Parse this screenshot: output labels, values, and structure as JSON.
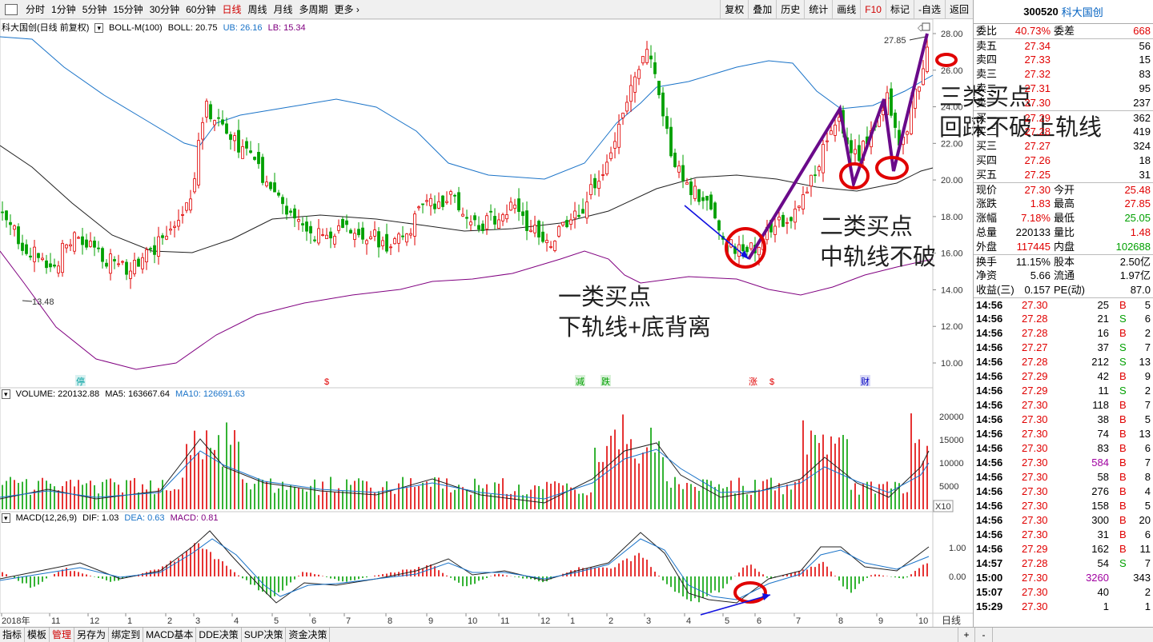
{
  "toolbar": {
    "periods": [
      "分时",
      "1分钟",
      "5分钟",
      "15分钟",
      "30分钟",
      "60分钟",
      "日线",
      "周线",
      "月线",
      "多周期",
      "更多"
    ],
    "active_period": "日线",
    "right_tools": [
      "复权",
      "叠加",
      "历史",
      "统计",
      "画线",
      "F10",
      "标记",
      "-自选",
      "返回"
    ]
  },
  "quote_header": {
    "code": "300520",
    "name": "科大国创"
  },
  "main_legend": {
    "title": "科大国创(日线 前复权)",
    "indicator": "BOLL-M(100)",
    "boll": "BOLL: 20.75",
    "ub": "UB: 26.16",
    "lb": "LB: 15.34"
  },
  "price_axis": [
    "28.00",
    "26.00",
    "24.00",
    "22.00",
    "20.00",
    "18.00",
    "16.00",
    "14.00",
    "12.00",
    "10.00"
  ],
  "high_label": "27.85",
  "low_label": "13.48",
  "event_markers": [
    "停",
    "$",
    "减",
    "跌",
    "涨",
    "$",
    "财"
  ],
  "volume_legend": {
    "title": "VOLUME: 220132.88",
    "ma5": "MA5: 163667.64",
    "ma10": "MA10: 126691.63"
  },
  "volume_axis": [
    "20000",
    "15000",
    "10000",
    "5000"
  ],
  "volume_unit": "X10",
  "macd_legend": {
    "title": "MACD(12,26,9)",
    "dif": "DIF: 1.03",
    "dea": "DEA: 0.63",
    "macd": "MACD: 0.81"
  },
  "macd_axis": [
    "1.00",
    "0.00"
  ],
  "time_axis": [
    "2018年",
    "11",
    "12",
    "1",
    "2",
    "3",
    "4",
    "5",
    "6",
    "7",
    "8",
    "9",
    "10",
    "11",
    "12",
    "1",
    "2",
    "3",
    "4",
    "5",
    "6",
    "7",
    "8",
    "9",
    "10"
  ],
  "time_axis_unit": "日线",
  "annotations": {
    "buy1_line1": "一类买点",
    "buy1_line2": "下轨线+底背离",
    "buy2_line1": "二类买点",
    "buy2_line2": "中轨线不破",
    "buy3_line1": "三类买点",
    "buy3_line2": "回踩不破上轨线"
  },
  "quote": {
    "weibi_label": "委比",
    "weibi": "40.73%",
    "weicha_label": "委差",
    "weicha": "668",
    "sells": [
      {
        "label": "卖五",
        "price": "27.34",
        "vol": "56"
      },
      {
        "label": "卖四",
        "price": "27.33",
        "vol": "15"
      },
      {
        "label": "卖三",
        "price": "27.32",
        "vol": "83"
      },
      {
        "label": "卖二",
        "price": "27.31",
        "vol": "95"
      },
      {
        "label": "卖一",
        "price": "27.30",
        "vol": "237"
      }
    ],
    "buys": [
      {
        "label": "买一",
        "price": "27.29",
        "vol": "362"
      },
      {
        "label": "买二",
        "price": "27.28",
        "vol": "419"
      },
      {
        "label": "买三",
        "price": "27.27",
        "vol": "324"
      },
      {
        "label": "买四",
        "price": "27.26",
        "vol": "18"
      },
      {
        "label": "买五",
        "price": "27.25",
        "vol": "31"
      }
    ],
    "stats": [
      {
        "l1": "现价",
        "v1": "27.30",
        "c1": "red",
        "l2": "今开",
        "v2": "25.48",
        "c2": "red"
      },
      {
        "l1": "涨跌",
        "v1": "1.83",
        "c1": "red",
        "l2": "最高",
        "v2": "27.85",
        "c2": "red"
      },
      {
        "l1": "涨幅",
        "v1": "7.18%",
        "c1": "red",
        "l2": "最低",
        "v2": "25.05",
        "c2": "green"
      },
      {
        "l1": "总量",
        "v1": "220133",
        "c1": "black",
        "l2": "量比",
        "v2": "1.48",
        "c2": "red"
      },
      {
        "l1": "外盘",
        "v1": "117445",
        "c1": "red",
        "l2": "内盘",
        "v2": "102688",
        "c2": "green"
      }
    ],
    "stats2": [
      {
        "l1": "换手",
        "v1": "11.15%",
        "l2": "股本",
        "v2": "2.50亿"
      },
      {
        "l1": "净资",
        "v1": "5.66",
        "l2": "流通",
        "v2": "1.97亿"
      },
      {
        "l1": "收益(三)",
        "v1": "0.157",
        "l2": "PE(动)",
        "v2": "87.0"
      }
    ],
    "ticks": [
      {
        "t": "14:56",
        "p": "27.30",
        "v": "25",
        "bs": "B",
        "n": "5",
        "vc": "black"
      },
      {
        "t": "14:56",
        "p": "27.28",
        "v": "21",
        "bs": "S",
        "n": "6",
        "vc": "black"
      },
      {
        "t": "14:56",
        "p": "27.28",
        "v": "16",
        "bs": "B",
        "n": "2",
        "vc": "black"
      },
      {
        "t": "14:56",
        "p": "27.27",
        "v": "37",
        "bs": "S",
        "n": "7",
        "vc": "black"
      },
      {
        "t": "14:56",
        "p": "27.28",
        "v": "212",
        "bs": "S",
        "n": "13",
        "vc": "black"
      },
      {
        "t": "14:56",
        "p": "27.29",
        "v": "42",
        "bs": "B",
        "n": "9",
        "vc": "black"
      },
      {
        "t": "14:56",
        "p": "27.29",
        "v": "11",
        "bs": "S",
        "n": "2",
        "vc": "black"
      },
      {
        "t": "14:56",
        "p": "27.30",
        "v": "118",
        "bs": "B",
        "n": "7",
        "vc": "black"
      },
      {
        "t": "14:56",
        "p": "27.30",
        "v": "38",
        "bs": "B",
        "n": "5",
        "vc": "black"
      },
      {
        "t": "14:56",
        "p": "27.30",
        "v": "74",
        "bs": "B",
        "n": "13",
        "vc": "black"
      },
      {
        "t": "14:56",
        "p": "27.30",
        "v": "83",
        "bs": "B",
        "n": "6",
        "vc": "black"
      },
      {
        "t": "14:56",
        "p": "27.30",
        "v": "584",
        "bs": "B",
        "n": "7",
        "vc": "purple"
      },
      {
        "t": "14:56",
        "p": "27.30",
        "v": "58",
        "bs": "B",
        "n": "8",
        "vc": "black"
      },
      {
        "t": "14:56",
        "p": "27.30",
        "v": "276",
        "bs": "B",
        "n": "4",
        "vc": "black"
      },
      {
        "t": "14:56",
        "p": "27.30",
        "v": "158",
        "bs": "B",
        "n": "5",
        "vc": "black"
      },
      {
        "t": "14:56",
        "p": "27.30",
        "v": "300",
        "bs": "B",
        "n": "20",
        "vc": "black"
      },
      {
        "t": "14:56",
        "p": "27.30",
        "v": "31",
        "bs": "B",
        "n": "6",
        "vc": "black"
      },
      {
        "t": "14:56",
        "p": "27.29",
        "v": "162",
        "bs": "B",
        "n": "11",
        "vc": "black"
      },
      {
        "t": "14:57",
        "p": "27.28",
        "v": "54",
        "bs": "S",
        "n": "7",
        "vc": "black"
      },
      {
        "t": "15:00",
        "p": "27.30",
        "v": "3260",
        "bs": "",
        "n": "343",
        "vc": "purple"
      },
      {
        "t": "15:07",
        "p": "27.30",
        "v": "40",
        "bs": "",
        "n": "2",
        "vc": "black"
      },
      {
        "t": "15:29",
        "p": "27.30",
        "v": "1",
        "bs": "",
        "n": "1",
        "vc": "black"
      }
    ]
  },
  "bottom_tabs": [
    "指标",
    "模板",
    "管理",
    "另存为",
    "绑定到",
    "MACD基本",
    "DDE决策",
    "SUP决策",
    "资金决策"
  ],
  "active_bottom_tab": "管理",
  "zoom_plus": "+",
  "zoom_minus": "-",
  "colors": {
    "up": "#e00000",
    "down": "#00a000",
    "boll_upper": "#1a73c8",
    "boll_mid": "#202020",
    "boll_lower": "#800080",
    "annotation_line": "#6a0a8a",
    "circle": "#e00000",
    "arrow": "#1010e0"
  }
}
